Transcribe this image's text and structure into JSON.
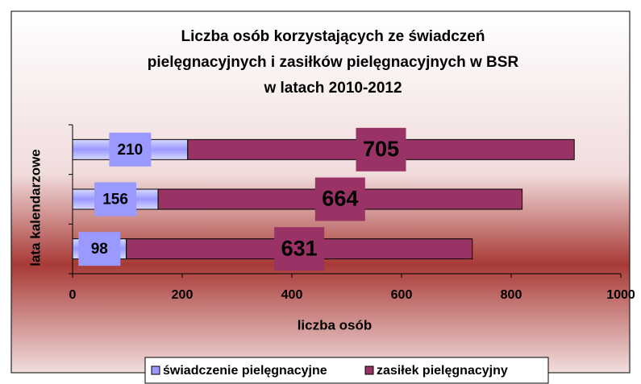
{
  "chart_data": {
    "type": "stacked-bar-horizontal",
    "title": "Liczba osób korzystających ze świadczeń pielęgnacyjnych i zasiłków pielęgnacyjnych w BSR w latach 2010-2012",
    "x_label": "liczba osób",
    "y_label": "lata kalendarzowe",
    "categories": [
      null,
      null,
      null
    ],
    "series": [
      {
        "name": "świadczenie pielęgnacyjne",
        "color": "#9999ff",
        "values": [
          98,
          156,
          210
        ]
      },
      {
        "name": "zasiłek pielęgnacyjny",
        "color": "#993366",
        "values": [
          631,
          664,
          705
        ]
      }
    ],
    "xlim": [
      0,
      1000
    ],
    "xticks": [
      0,
      200,
      400,
      600,
      800,
      1000
    ],
    "legend": "bottom"
  }
}
